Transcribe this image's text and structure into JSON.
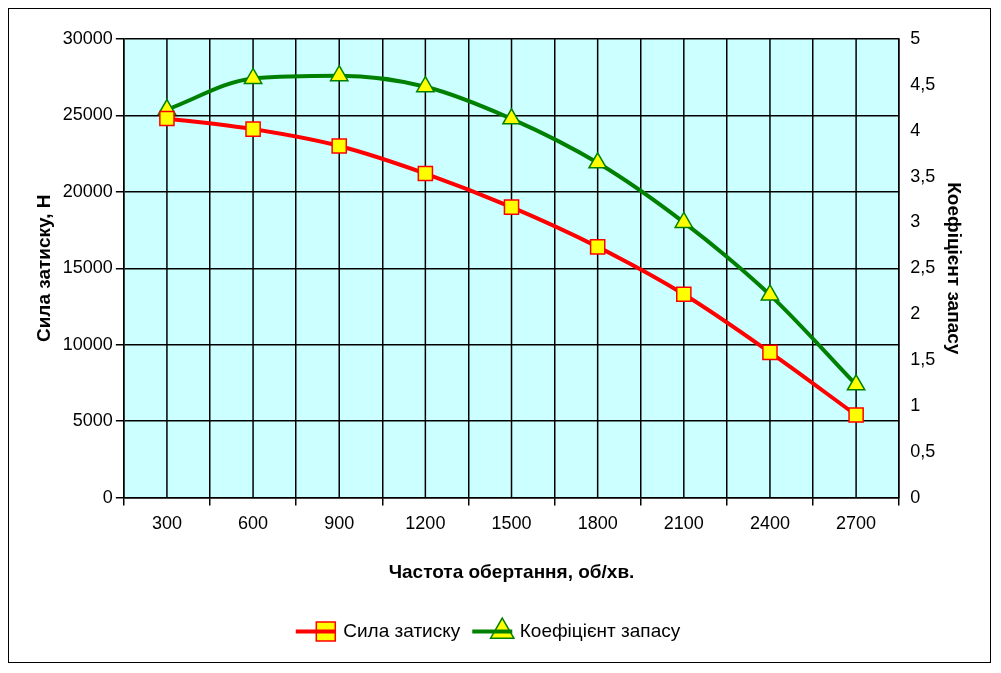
{
  "chart_data": {
    "type": "line",
    "xlabel": "Частота обертання, об/хв.",
    "ylabel": "Сила затиску, Н",
    "y2label": "Коефіцієнт запасу",
    "categories": [
      "300",
      "600",
      "900",
      "1200",
      "1500",
      "1800",
      "2100",
      "2400",
      "2700"
    ],
    "series": [
      {
        "name": "Сила затиску",
        "color": "#ff0000",
        "marker": "square",
        "values": [
          24800,
          24100,
          23000,
          21200,
          19000,
          16400,
          13300,
          9500,
          5400
        ]
      },
      {
        "name": "Коефіцієнт запасу",
        "color": "#008000",
        "marker": "triangle",
        "axis": "y2",
        "values": [
          4.23,
          4.57,
          4.6,
          4.48,
          4.13,
          3.65,
          3.0,
          2.21,
          1.23
        ]
      }
    ],
    "ylim": [
      0,
      30000
    ],
    "yticks": [
      0,
      5000,
      10000,
      15000,
      20000,
      25000,
      30000
    ],
    "y2lim": [
      0,
      5
    ],
    "y2ticks": [
      0,
      {
        "value": 0.5,
        "label": "0,5"
      },
      1,
      {
        "value": 1.5,
        "label": "1,5"
      },
      2,
      {
        "value": 2.5,
        "label": "2,5"
      },
      3,
      {
        "value": 3.5,
        "label": "3,5"
      },
      4,
      {
        "value": 4.5,
        "label": "4,5"
      },
      5
    ],
    "grid": true,
    "legend": "bottom",
    "line_style": "solid"
  }
}
